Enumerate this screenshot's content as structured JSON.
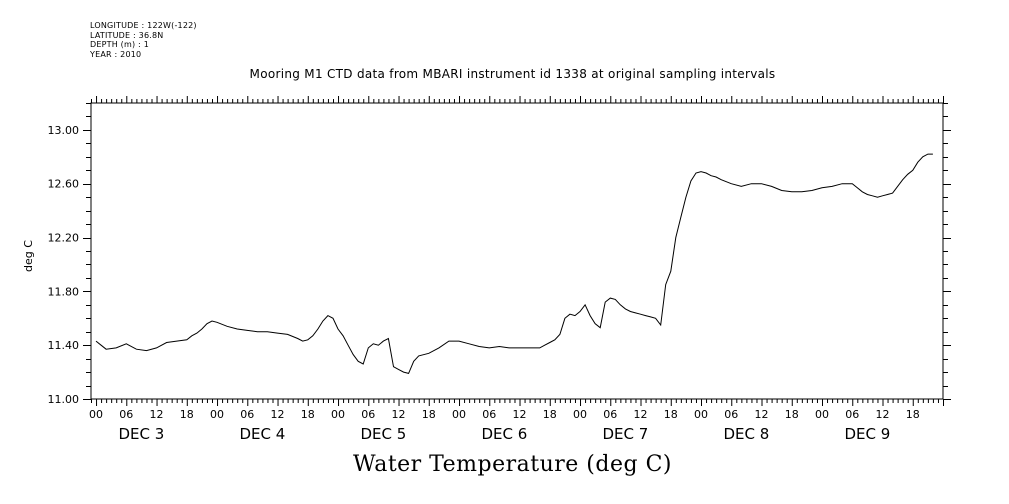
{
  "header": {
    "longitude": "LONGITUDE : 122W(-122)",
    "latitude": "LATITUDE : 36.8N",
    "depth": "DEPTH (m) : 1",
    "year": "YEAR : 2010"
  },
  "chart_data": {
    "type": "line",
    "title": "Mooring M1 CTD data from MBARI instrument id 1338 at original sampling intervals",
    "bottom_title": "Water Temperature (deg C)",
    "ylabel": "deg C",
    "xlabel": "",
    "ylim": [
      11.0,
      13.2
    ],
    "xlim_hours": [
      -1,
      168
    ],
    "yticks": [
      "11.00",
      "11.40",
      "11.80",
      "12.20",
      "12.60",
      "13.00"
    ],
    "ytick_values": [
      11.0,
      11.4,
      11.8,
      12.2,
      12.6,
      13.0
    ],
    "hour_ticks": [
      "00",
      "06",
      "12",
      "18",
      "00",
      "06",
      "12",
      "18",
      "00",
      "06",
      "12",
      "18",
      "00",
      "06",
      "12",
      "18",
      "00",
      "06",
      "12",
      "18",
      "00",
      "06",
      "12",
      "18",
      "00",
      "06",
      "12",
      "18"
    ],
    "day_labels": [
      "DEC 3",
      "DEC 4",
      "DEC 5",
      "DEC 6",
      "DEC 7",
      "DEC 8",
      "DEC 9"
    ],
    "grid": false,
    "series": [
      {
        "name": "",
        "color": "#000000",
        "x": [
          0,
          1,
          2,
          4,
          6,
          8,
          10,
          12,
          14,
          16,
          18,
          19,
          20,
          21,
          22,
          23,
          24,
          26,
          28,
          30,
          32,
          34,
          36,
          38,
          40,
          41,
          42,
          43,
          44,
          45,
          46,
          47,
          48,
          49,
          50,
          51,
          52,
          53,
          54,
          55,
          56,
          57,
          58,
          59,
          60,
          61,
          62,
          63,
          64,
          66,
          68,
          70,
          72,
          74,
          76,
          78,
          80,
          82,
          84,
          86,
          88,
          89,
          90,
          91,
          92,
          93,
          94,
          95,
          96,
          97,
          98,
          99,
          100,
          101,
          102,
          103,
          104,
          105,
          106,
          107,
          108,
          109,
          110,
          111,
          112,
          113,
          114,
          115,
          116,
          117,
          118,
          119,
          120,
          121,
          122,
          123,
          124,
          126,
          128,
          130,
          132,
          134,
          136,
          138,
          140,
          142,
          144,
          146,
          148,
          150,
          151,
          152,
          153,
          154,
          155,
          156,
          157,
          158,
          159,
          160,
          161,
          162,
          163,
          164,
          165,
          166
        ],
        "y": [
          11.43,
          11.4,
          11.37,
          11.38,
          11.41,
          11.37,
          11.36,
          11.38,
          11.42,
          11.43,
          11.44,
          11.47,
          11.49,
          11.52,
          11.56,
          11.58,
          11.57,
          11.54,
          11.52,
          11.51,
          11.5,
          11.5,
          11.49,
          11.48,
          11.45,
          11.43,
          11.44,
          11.47,
          11.52,
          11.58,
          11.62,
          11.6,
          11.52,
          11.47,
          11.4,
          11.33,
          11.28,
          11.26,
          11.38,
          11.41,
          11.4,
          11.43,
          11.45,
          11.24,
          11.22,
          11.2,
          11.19,
          11.28,
          11.32,
          11.34,
          11.38,
          11.43,
          11.43,
          11.41,
          11.39,
          11.38,
          11.39,
          11.38,
          11.38,
          11.38,
          11.38,
          11.4,
          11.42,
          11.44,
          11.48,
          11.6,
          11.63,
          11.62,
          11.65,
          11.7,
          11.62,
          11.56,
          11.53,
          11.72,
          11.75,
          11.74,
          11.7,
          11.67,
          11.65,
          11.64,
          11.63,
          11.62,
          11.61,
          11.6,
          11.55,
          11.85,
          11.95,
          12.2,
          12.35,
          12.5,
          12.62,
          12.68,
          12.69,
          12.68,
          12.66,
          12.65,
          12.63,
          12.6,
          12.58,
          12.6,
          12.6,
          12.58,
          12.55,
          12.54,
          12.54,
          12.55,
          12.57,
          12.58,
          12.6,
          12.6,
          12.57,
          12.54,
          12.52,
          12.51,
          12.5,
          12.51,
          12.52,
          12.53,
          12.58,
          12.63,
          12.67,
          12.7,
          12.76,
          12.8,
          12.82,
          12.82
        ]
      }
    ]
  }
}
